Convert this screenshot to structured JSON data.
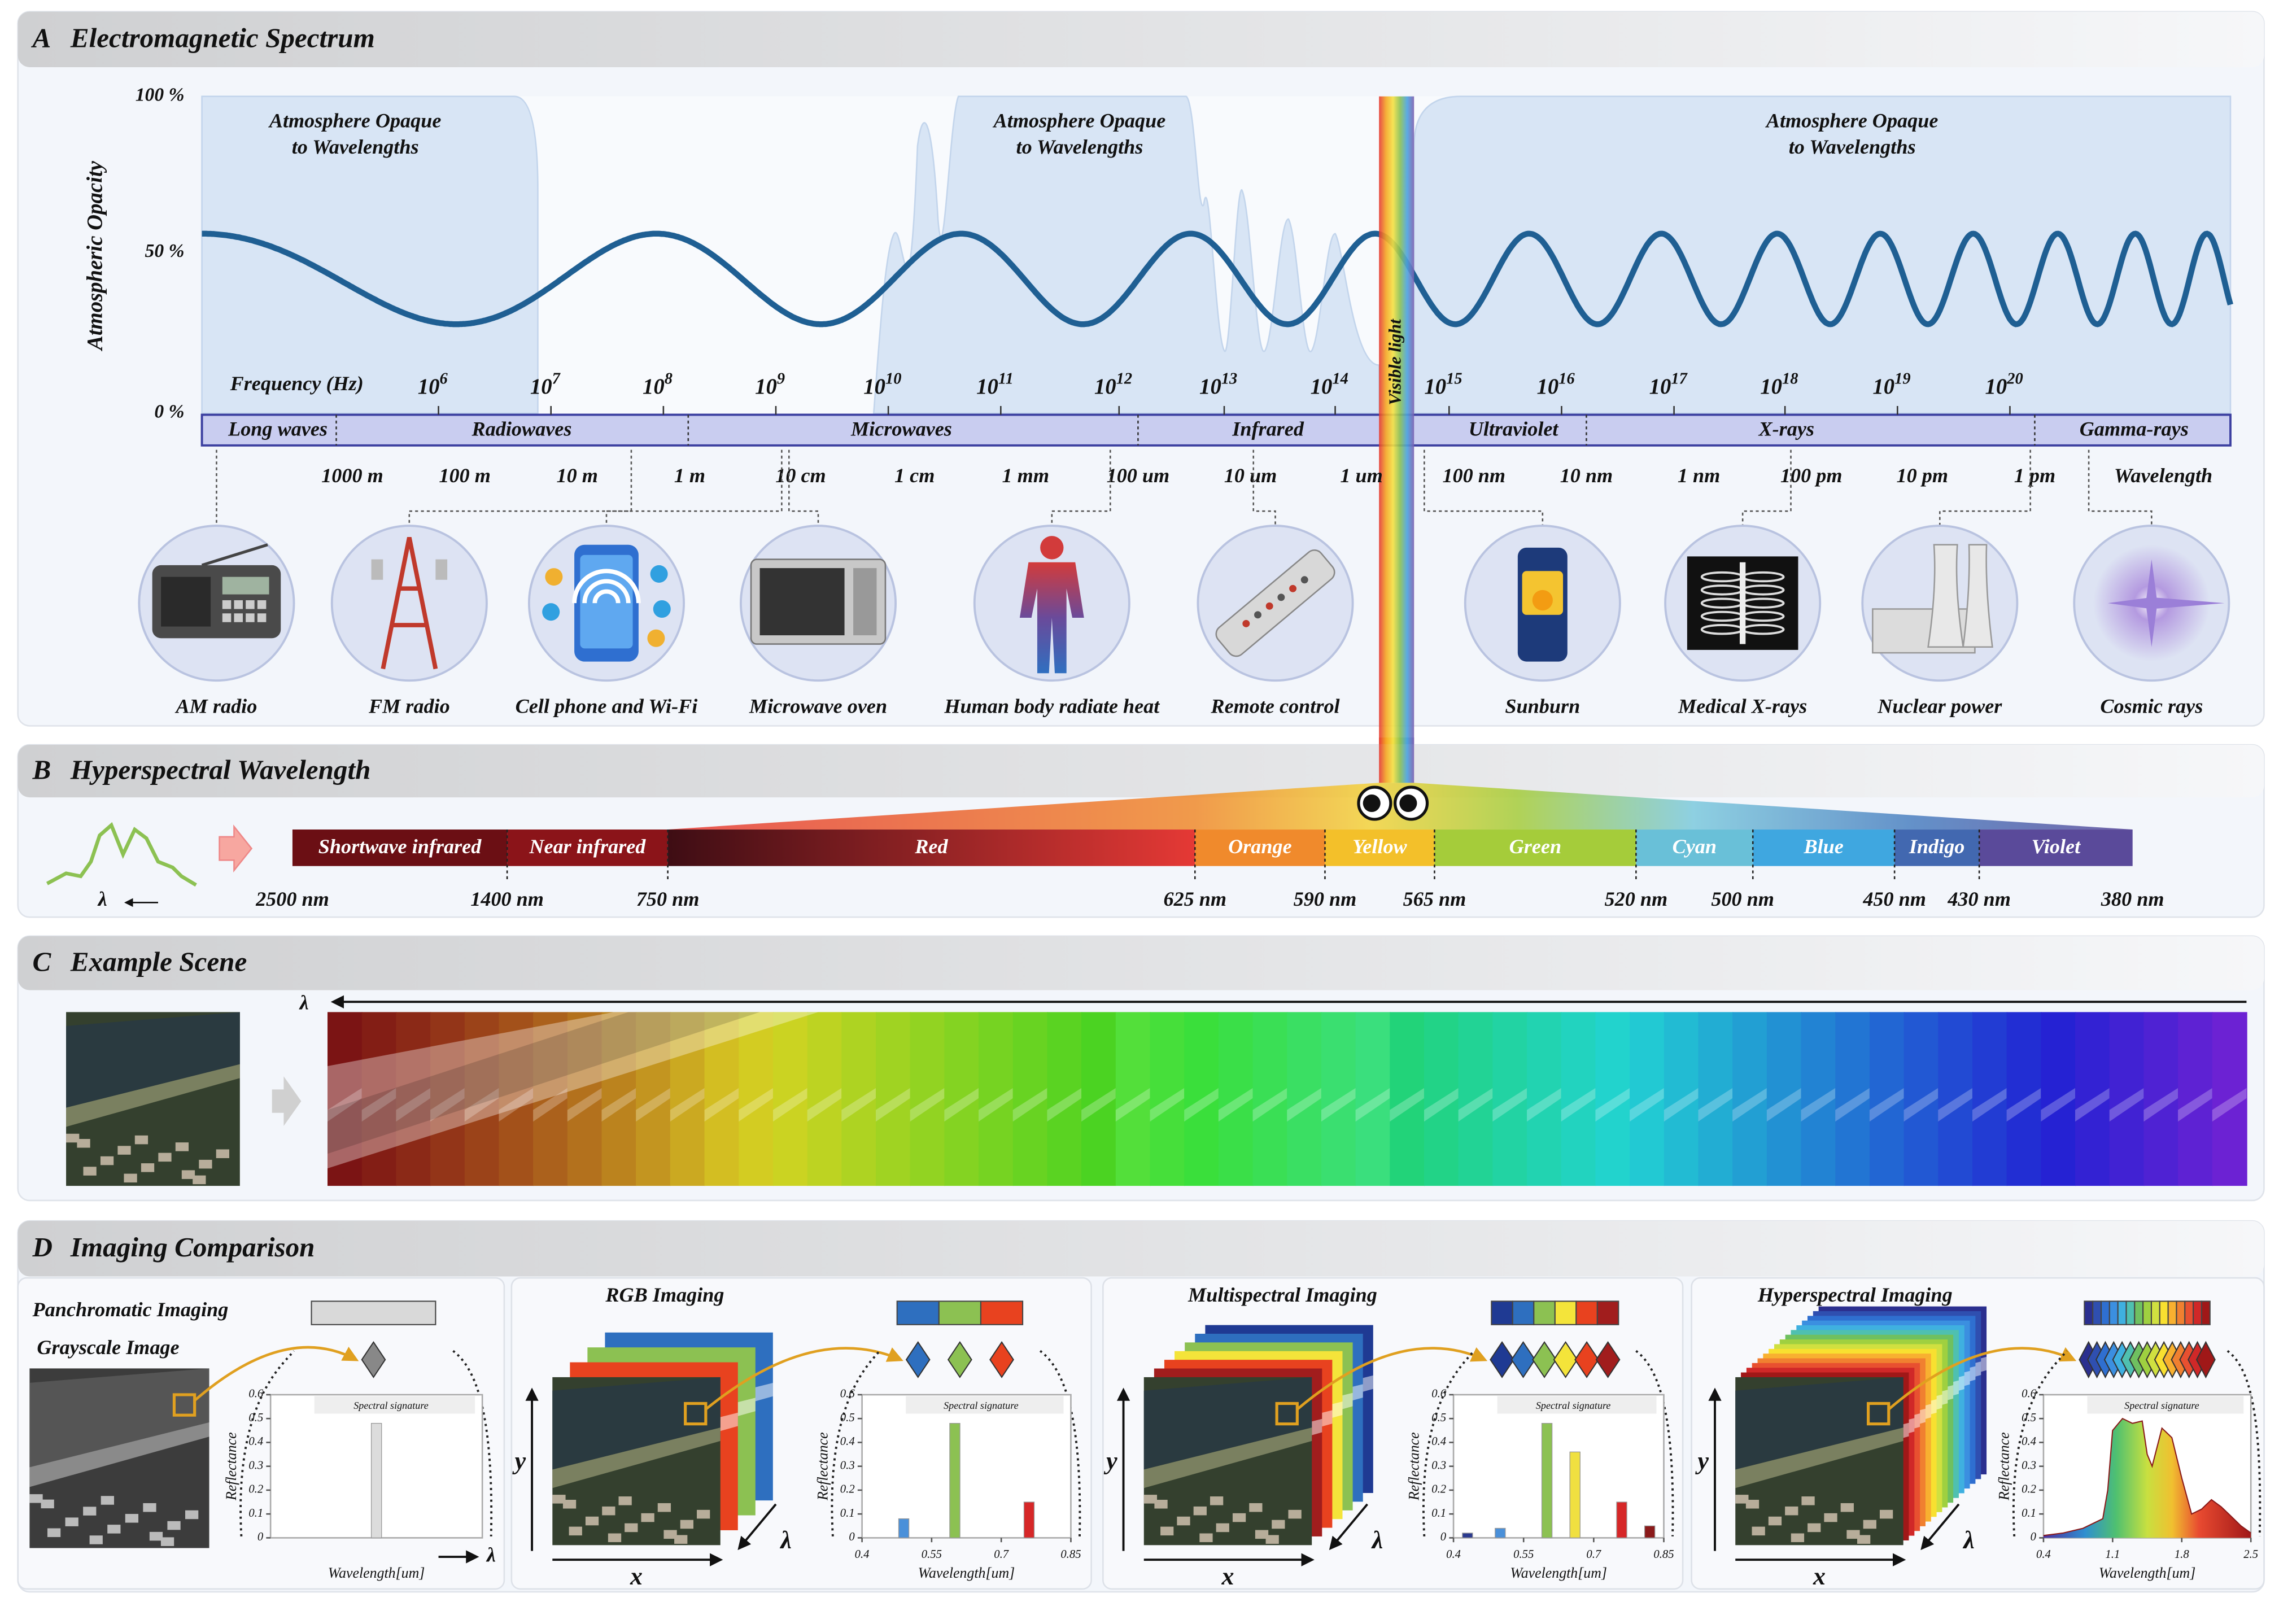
{
  "panel_a": {
    "letter": "A",
    "title": "Electromagnetic Spectrum",
    "y_axis_label": "Atmospheric Opacity",
    "y_ticks": [
      "100 %",
      "50 %",
      "0 %"
    ],
    "opaque_labels": [
      [
        "Atmosphere Opaque",
        "to Wavelengths"
      ],
      [
        "Atmosphere Opaque",
        "to Wavelengths"
      ],
      [
        "Atmosphere Opaque",
        "to Wavelengths"
      ]
    ],
    "frequency_label": "Frequency (Hz)",
    "frequency_base": "10",
    "frequency_exponents": [
      "6",
      "7",
      "8",
      "9",
      "10",
      "11",
      "12",
      "13",
      "14",
      "15",
      "16",
      "17",
      "18",
      "19",
      "20"
    ],
    "bands": [
      "Long waves",
      "Radiowaves",
      "Microwaves",
      "Infrared",
      "Visible light",
      "Ultraviolet",
      "X-rays",
      "Gamma-rays"
    ],
    "wavelengths": [
      "1000 m",
      "100 m",
      "10 m",
      "1 m",
      "10 cm",
      "1 cm",
      "1 mm",
      "100 um",
      "10 um",
      "1 um",
      "100 nm",
      "10 nm",
      "1 nm",
      "100 pm",
      "10 pm",
      "1 pm"
    ],
    "wavelength_label": "Wavelength",
    "examples": [
      "AM radio",
      "FM radio",
      "Cell phone and Wi-Fi",
      "Microwave oven",
      "Human body radiate heat",
      "Remote control",
      "Sunburn",
      "Medical X-rays",
      "Nuclear power",
      "Cosmic rays"
    ]
  },
  "panel_b": {
    "letter": "B",
    "title": "Hyperspectral Wavelength",
    "lambda": "λ",
    "bands": [
      "Shortwave infrared",
      "Near infrared",
      "Red",
      "Orange",
      "Yellow",
      "Green",
      "Cyan",
      "Blue",
      "Indigo",
      "Violet"
    ],
    "boundaries": [
      "2500 nm",
      "1400 nm",
      "750 nm",
      "625 nm",
      "590 nm",
      "565 nm",
      "520 nm",
      "500 nm",
      "450 nm",
      "430 nm",
      "380 nm"
    ]
  },
  "panel_c": {
    "letter": "C",
    "title": "Example Scene",
    "lambda": "λ"
  },
  "panel_d": {
    "letter": "D",
    "title": "Imaging Comparison",
    "panels": [
      {
        "title": "Panchromatic Imaging",
        "subtitle": "Grayscale Image",
        "band_colors": [
          "#d9d9d9"
        ],
        "chart": {
          "title": "Spectral signature",
          "y_label": "Reflectance",
          "x_label": "Wavelength[um]",
          "lambda_label": "λ",
          "ylim": [
            0,
            0.6
          ],
          "yticks": [
            0,
            0.1,
            0.2,
            0.3,
            0.4,
            0.5,
            0.6
          ],
          "bars": {
            "values": [
              0.48
            ],
            "colors": [
              "#dcdcdc"
            ]
          }
        }
      },
      {
        "title": "RGB Imaging",
        "y_label": "y",
        "x_label": "x",
        "lambda_label": "λ",
        "band_colors": [
          "#2e6fbf",
          "#8cc152",
          "#e8421f"
        ],
        "chart": {
          "title": "Spectral signature",
          "y_label": "Reflectance",
          "x_label": "Wavelength[um]",
          "ylim": [
            0,
            0.6
          ],
          "yticks": [
            0,
            0.1,
            0.2,
            0.3,
            0.4,
            0.5,
            0.6
          ],
          "xlim": [
            0.4,
            0.85
          ],
          "xticks": [
            0.4,
            0.55,
            0.7,
            0.85
          ],
          "bars": {
            "x": [
              0.49,
              0.6,
              0.76
            ],
            "values": [
              0.08,
              0.48,
              0.15
            ],
            "colors": [
              "#4a90d9",
              "#8cc152",
              "#d62728"
            ]
          }
        }
      },
      {
        "title": "Multispectral Imaging",
        "y_label": "y",
        "x_label": "x",
        "lambda_label": "λ",
        "band_colors": [
          "#1f3a93",
          "#2e6fbf",
          "#8cc152",
          "#f4e43a",
          "#e8421f",
          "#a11d1d"
        ],
        "chart": {
          "title": "Spectral signature",
          "y_label": "Reflectance",
          "x_label": "Wavelength[um]",
          "ylim": [
            0,
            0.6
          ],
          "yticks": [
            0,
            0.1,
            0.2,
            0.3,
            0.4,
            0.5,
            0.6
          ],
          "xlim": [
            0.4,
            0.85
          ],
          "xticks": [
            0.4,
            0.55,
            0.7,
            0.85
          ],
          "bars": {
            "x": [
              0.43,
              0.5,
              0.6,
              0.66,
              0.76,
              0.82
            ],
            "values": [
              0.02,
              0.04,
              0.48,
              0.36,
              0.15,
              0.05
            ],
            "colors": [
              "#2b3a8f",
              "#4a90d9",
              "#8cc152",
              "#f0e040",
              "#d62728",
              "#8b1a1a"
            ]
          }
        }
      },
      {
        "title": "Hyperspectral Imaging",
        "y_label": "y",
        "x_label": "x",
        "lambda_label": "λ",
        "band_colors": [
          "#2b2f8f",
          "#2f4fb0",
          "#2f6fd0",
          "#3b8fe0",
          "#3fb0e0",
          "#4fc0b0",
          "#6fc060",
          "#9fd040",
          "#d0e040",
          "#f8e030",
          "#f8b030",
          "#f08030",
          "#e85030",
          "#d02828",
          "#a01818"
        ],
        "chart": {
          "title": "Spectral signature",
          "y_label": "Reflectance",
          "x_label": "Wavelength[um]",
          "ylim": [
            0,
            0.6
          ],
          "yticks": [
            0,
            0.1,
            0.2,
            0.3,
            0.4,
            0.5,
            0.6
          ],
          "xlim": [
            0.4,
            2.5
          ],
          "xticks": [
            0.4,
            1.1,
            1.8,
            2.5
          ],
          "line": {
            "x": [
              0.4,
              0.6,
              0.8,
              1.0,
              1.05,
              1.1,
              1.2,
              1.3,
              1.4,
              1.45,
              1.5,
              1.6,
              1.7,
              1.8,
              1.9,
              2.0,
              2.1,
              2.2,
              2.3,
              2.4,
              2.5
            ],
            "values": [
              0.01,
              0.02,
              0.04,
              0.08,
              0.2,
              0.45,
              0.5,
              0.48,
              0.49,
              0.35,
              0.3,
              0.46,
              0.42,
              0.25,
              0.1,
              0.12,
              0.16,
              0.13,
              0.09,
              0.05,
              0.02
            ]
          }
        }
      }
    ]
  }
}
